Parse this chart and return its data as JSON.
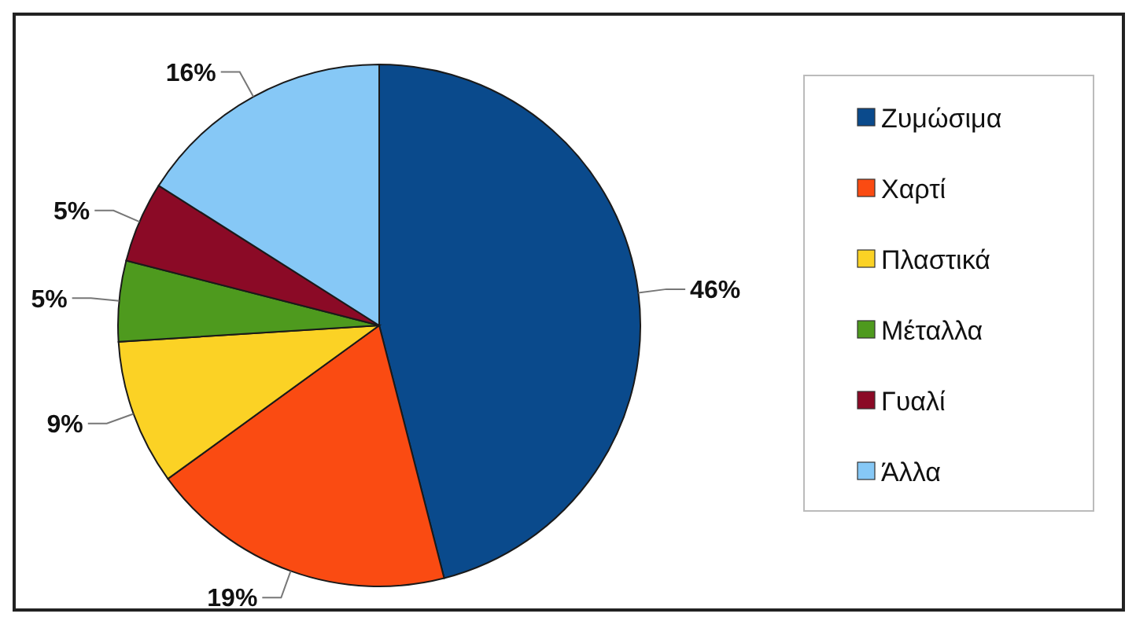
{
  "chart_data": {
    "type": "pie",
    "categories": [
      "Ζυμώσιμα",
      "Χαρτί",
      "Πλαστικά",
      "Μέταλλα",
      "Γυαλί",
      "Άλλα"
    ],
    "values": [
      46,
      19,
      9,
      5,
      5,
      16
    ],
    "value_labels": [
      "46%",
      "19%",
      "9%",
      "5%",
      "5%",
      "16%"
    ],
    "colors": [
      "#0a4a8c",
      "#fa4b12",
      "#fbd225",
      "#4e9a1e",
      "#8b0a26",
      "#86c8f6"
    ],
    "legend": "right"
  }
}
